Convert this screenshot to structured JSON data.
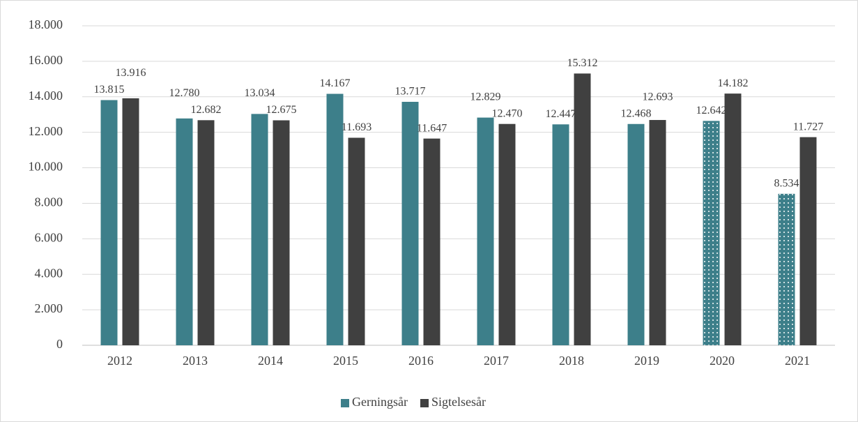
{
  "chart_data": {
    "type": "bar",
    "categories": [
      "2012",
      "2013",
      "2014",
      "2015",
      "2016",
      "2017",
      "2018",
      "2019",
      "2020",
      "2021"
    ],
    "series": [
      {
        "name": "Gerningsår",
        "color": "#3d7f8a",
        "values": [
          13815,
          12780,
          13034,
          14167,
          13717,
          12829,
          12447,
          12468,
          12642,
          8534
        ],
        "value_labels": [
          "13.815",
          "12.780",
          "13.034",
          "14.167",
          "13.717",
          "12.829",
          "12.447",
          "12.468",
          "12.642",
          "8.534"
        ],
        "dotted": [
          false,
          false,
          false,
          false,
          false,
          false,
          false,
          false,
          true,
          true
        ]
      },
      {
        "name": "Sigtelsesår",
        "color": "#404040",
        "values": [
          13916,
          12682,
          12675,
          11693,
          11647,
          12470,
          15312,
          12693,
          14182,
          11727
        ],
        "value_labels": [
          "13.916",
          "12.682",
          "12.675",
          "11.693",
          "11.647",
          "12.470",
          "15.312",
          "12.693",
          "14.182",
          "11.727"
        ]
      }
    ],
    "ylim": [
      0,
      18000
    ],
    "yticks": [
      0,
      {
        "value": 2000,
        "label": "2.000"
      },
      {
        "value": 4000,
        "label": "4.000"
      },
      {
        "value": 6000,
        "label": "6.000"
      },
      {
        "value": 8000,
        "label": "8.000"
      },
      {
        "value": 10000,
        "label": "10.000"
      },
      {
        "value": 12000,
        "label": "12.000"
      },
      {
        "value": 14000,
        "label": "14.000"
      },
      {
        "value": 16000,
        "label": "16.000"
      },
      {
        "value": 18000,
        "label": "18.000"
      }
    ],
    "grid": true,
    "legend": "bottom"
  }
}
